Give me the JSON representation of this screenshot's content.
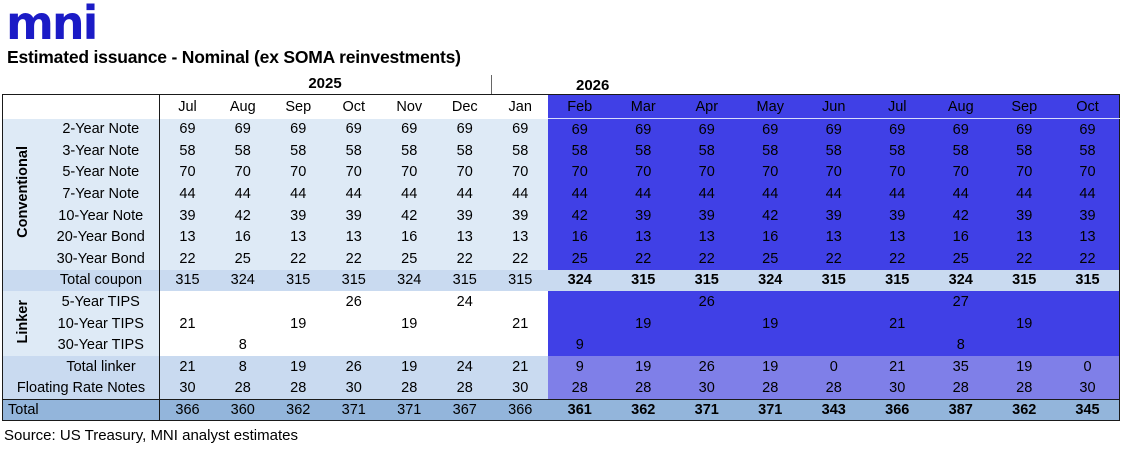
{
  "logo_text": "mni",
  "title": "Estimated issuance - Nominal (ex SOMA reinvestments)",
  "source_note": "Source: US Treasury, MNI analyst estimates",
  "colors": {
    "logo_blue": "#1B1BC6",
    "light_blue_bg": "#DEEAF6",
    "subtotal_band_blue": "#C9DAF0",
    "grand_total_blue": "#93B5DB",
    "forecast_blue": "#4040E6",
    "forecast_purple": "#7F7FE8",
    "text_black": "#000000"
  },
  "chart_data": {
    "type": "table",
    "title": "Estimated issuance - Nominal (ex SOMA reinvestments)",
    "source": "Source: US Treasury, MNI analyst estimates",
    "year_groups": [
      {
        "label": "2025",
        "col_span": 6
      },
      {
        "label": "2026",
        "col_span": 10
      }
    ],
    "columns": [
      "Jul",
      "Aug",
      "Sep",
      "Oct",
      "Nov",
      "Dec",
      "Jan",
      "Feb",
      "Mar",
      "Apr",
      "May",
      "Jun",
      "Jul",
      "Aug",
      "Sep",
      "Oct"
    ],
    "highlight_from_column": 7,
    "row_groups": [
      {
        "label": "Conventional",
        "first_row": 0,
        "row_span": 7
      },
      {
        "label": "Linker",
        "first_row": 8,
        "row_span": 3
      }
    ],
    "rows": [
      {
        "label": "2-Year Note",
        "type": "conv",
        "values": [
          69,
          69,
          69,
          69,
          69,
          69,
          69,
          69,
          69,
          69,
          69,
          69,
          69,
          69,
          69,
          69
        ]
      },
      {
        "label": "3-Year Note",
        "type": "conv",
        "values": [
          58,
          58,
          58,
          58,
          58,
          58,
          58,
          58,
          58,
          58,
          58,
          58,
          58,
          58,
          58,
          58
        ]
      },
      {
        "label": "5-Year Note",
        "type": "conv",
        "values": [
          70,
          70,
          70,
          70,
          70,
          70,
          70,
          70,
          70,
          70,
          70,
          70,
          70,
          70,
          70,
          70
        ]
      },
      {
        "label": "7-Year Note",
        "type": "conv",
        "values": [
          44,
          44,
          44,
          44,
          44,
          44,
          44,
          44,
          44,
          44,
          44,
          44,
          44,
          44,
          44,
          44
        ]
      },
      {
        "label": "10-Year Note",
        "type": "conv",
        "values": [
          39,
          42,
          39,
          39,
          42,
          39,
          39,
          42,
          39,
          39,
          42,
          39,
          39,
          42,
          39,
          39
        ]
      },
      {
        "label": "20-Year Bond",
        "type": "conv",
        "values": [
          13,
          16,
          13,
          13,
          16,
          13,
          13,
          16,
          13,
          13,
          16,
          13,
          13,
          16,
          13,
          13
        ]
      },
      {
        "label": "30-Year Bond",
        "type": "conv",
        "values": [
          22,
          25,
          22,
          22,
          25,
          22,
          22,
          25,
          22,
          22,
          25,
          22,
          22,
          25,
          22,
          22
        ]
      },
      {
        "label": "Total coupon",
        "type": "coupon_total",
        "values": [
          315,
          324,
          315,
          315,
          324,
          315,
          315,
          324,
          315,
          315,
          324,
          315,
          315,
          324,
          315,
          315
        ]
      },
      {
        "label": "5-Year TIPS",
        "type": "tips",
        "values": [
          "",
          "",
          "",
          26,
          "",
          24,
          "",
          "",
          "",
          26,
          "",
          "",
          "",
          27,
          "",
          ""
        ]
      },
      {
        "label": "10-Year TIPS",
        "type": "tips",
        "values": [
          21,
          "",
          19,
          "",
          19,
          "",
          21,
          "",
          19,
          "",
          19,
          "",
          21,
          "",
          19,
          ""
        ]
      },
      {
        "label": "30-Year TIPS",
        "type": "tips",
        "values": [
          "",
          8,
          "",
          "",
          "",
          "",
          "",
          9,
          "",
          "",
          "",
          "",
          "",
          8,
          "",
          ""
        ]
      },
      {
        "label": "Total linker",
        "type": "linker_total",
        "values": [
          21,
          8,
          19,
          26,
          19,
          24,
          21,
          9,
          19,
          26,
          19,
          0,
          21,
          35,
          19,
          0
        ]
      },
      {
        "label": "Floating Rate Notes",
        "type": "frn",
        "values": [
          30,
          28,
          28,
          30,
          28,
          28,
          30,
          28,
          28,
          30,
          28,
          28,
          30,
          28,
          28,
          30
        ]
      },
      {
        "label": "Total",
        "type": "grand",
        "values": [
          366,
          360,
          362,
          371,
          371,
          367,
          366,
          361,
          362,
          371,
          371,
          343,
          366,
          387,
          362,
          345
        ]
      }
    ]
  }
}
